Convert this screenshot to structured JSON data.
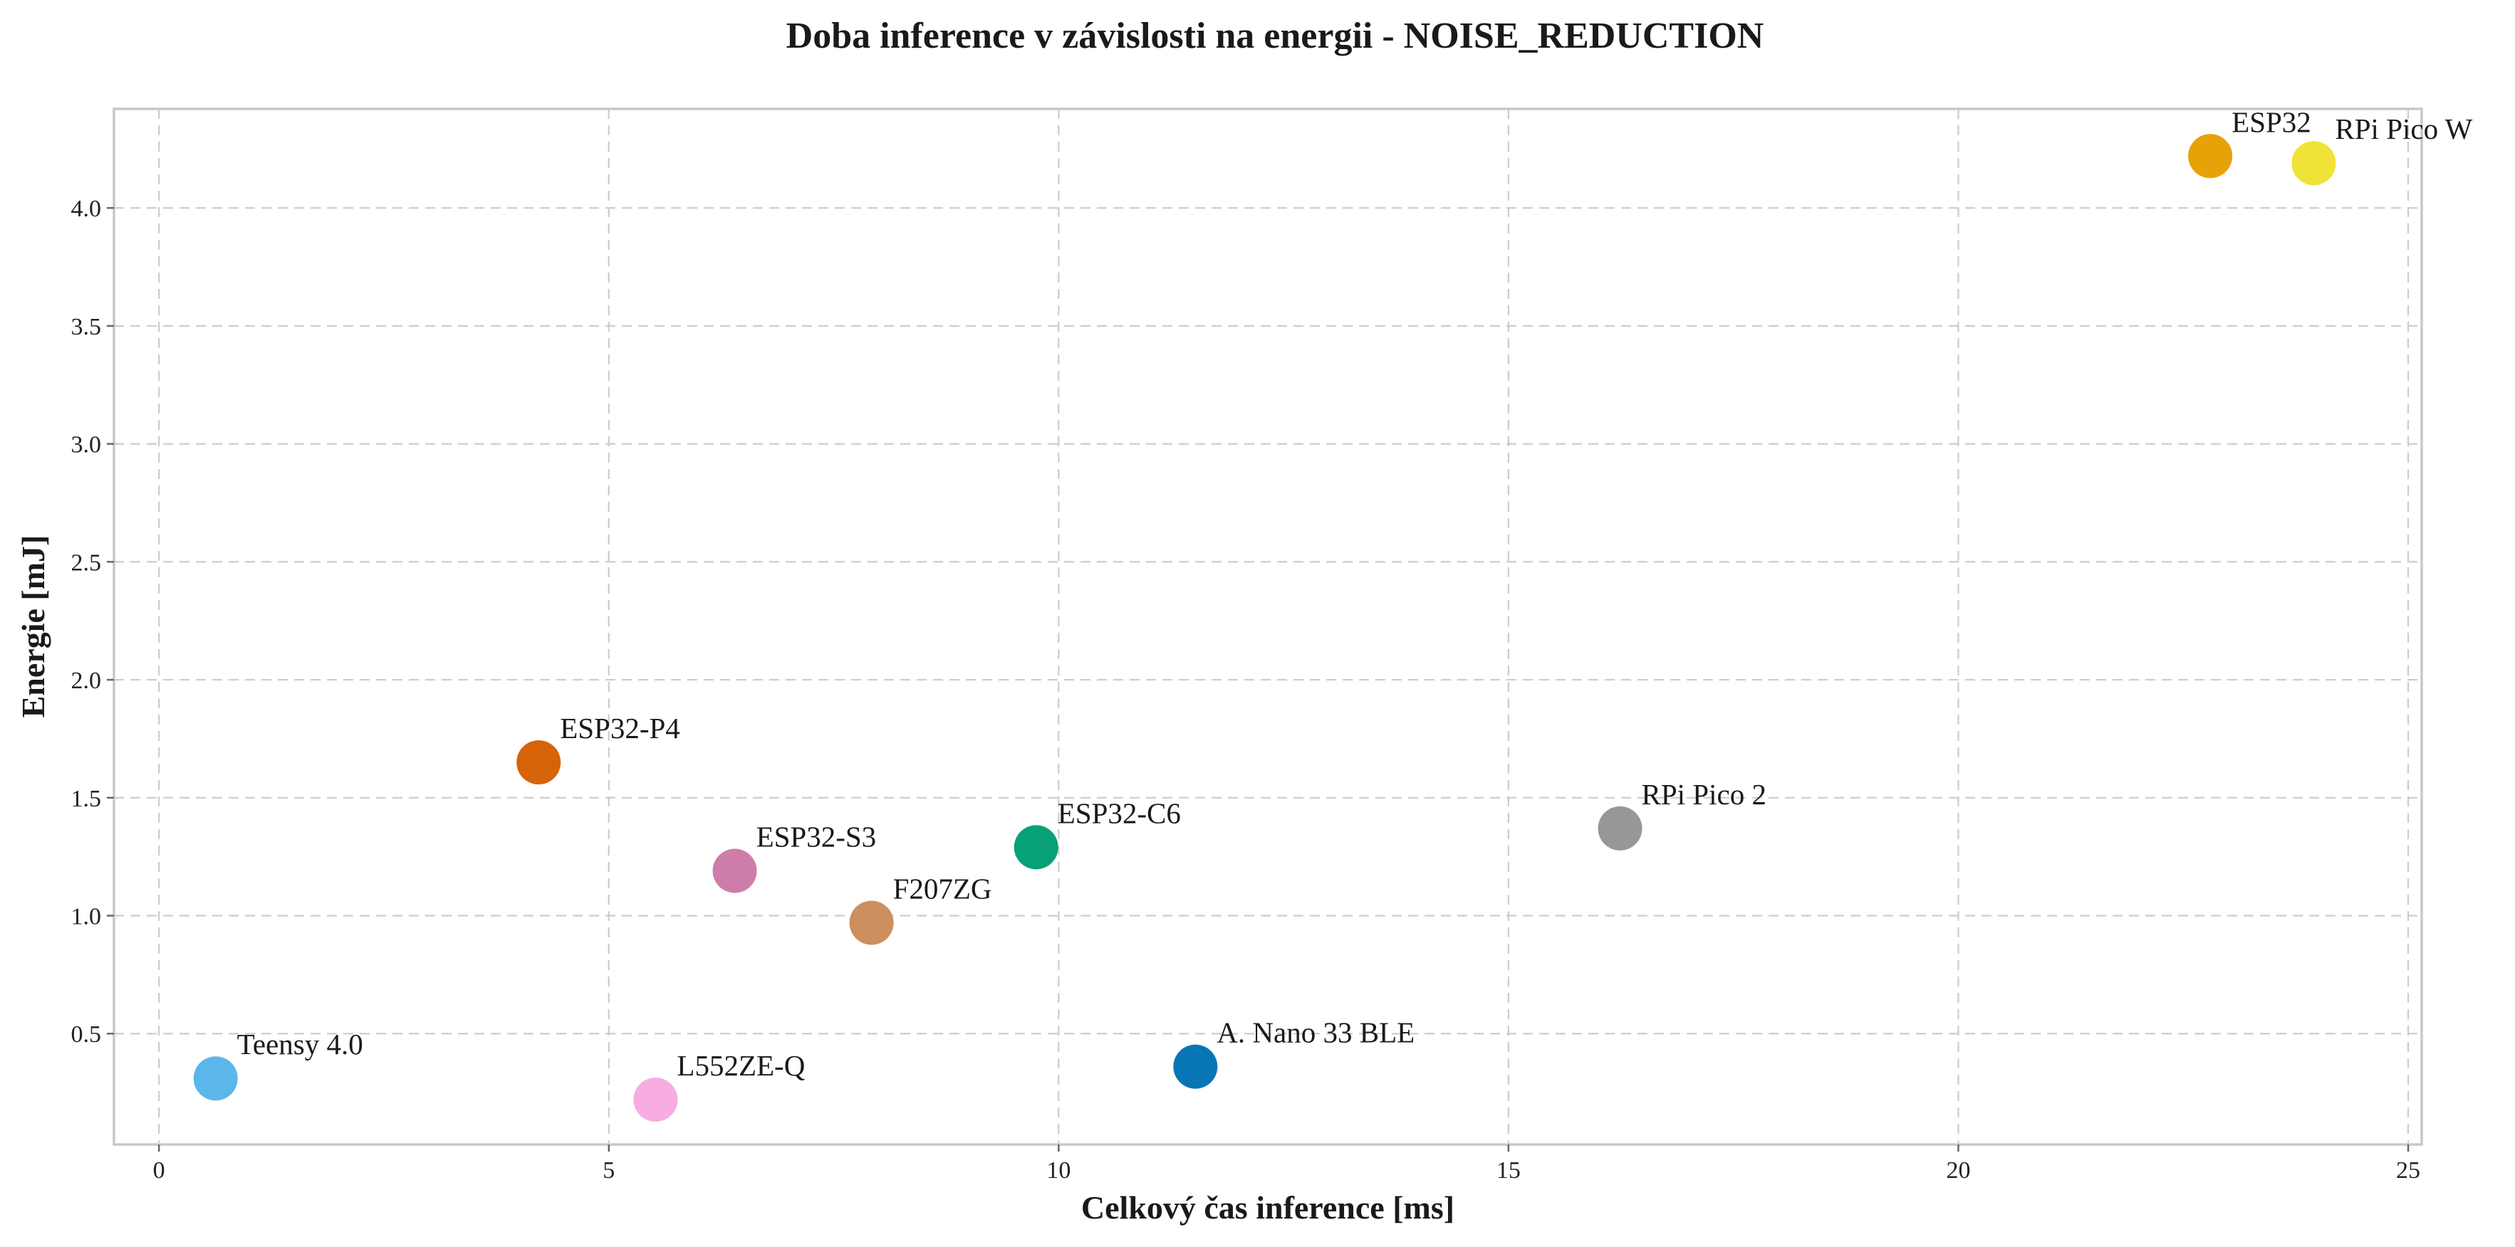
{
  "chart_data": {
    "type": "scatter",
    "title": "Doba inference v závislosti na energii - NOISE_REDUCTION",
    "xlabel": "Celkový čas inference [ms]",
    "ylabel": "Energie [mJ]",
    "xlim": [
      -0.5,
      25.15
    ],
    "ylim": [
      0.03,
      4.42
    ],
    "xticks": [
      0,
      5,
      10,
      15,
      20,
      25
    ],
    "xtick_labels": [
      "0",
      "5",
      "10",
      "15",
      "20",
      "25"
    ],
    "yticks": [
      0.5,
      1.0,
      1.5,
      2.0,
      2.5,
      3.0,
      3.5,
      4.0
    ],
    "ytick_labels": [
      "0.5",
      "1.0",
      "1.5",
      "2.0",
      "2.5",
      "3.0",
      "3.5",
      "4.0"
    ],
    "grid": true,
    "points": [
      {
        "label": "Teensy 4.0",
        "x": 0.63,
        "y": 0.31,
        "color": "#56b4e9"
      },
      {
        "label": "ESP32-P4",
        "x": 4.22,
        "y": 1.65,
        "color": "#d55e00"
      },
      {
        "label": "L552ZE-Q",
        "x": 5.52,
        "y": 0.22,
        "color": "#f9a9e0"
      },
      {
        "label": "ESP32-S3",
        "x": 6.4,
        "y": 1.19,
        "color": "#cc79a7"
      },
      {
        "label": "F207ZG",
        "x": 7.92,
        "y": 0.97,
        "color": "#ca8b5a"
      },
      {
        "label": "ESP32-C6",
        "x": 9.75,
        "y": 1.29,
        "color": "#009e73"
      },
      {
        "label": "A. Nano 33 BLE",
        "x": 11.52,
        "y": 0.36,
        "color": "#0072b2"
      },
      {
        "label": "RPi Pico 2",
        "x": 16.24,
        "y": 1.37,
        "color": "#949494"
      },
      {
        "label": "ESP32",
        "x": 22.8,
        "y": 4.22,
        "color": "#e69f00"
      },
      {
        "label": "RPi Pico W",
        "x": 23.95,
        "y": 4.19,
        "color": "#f0e130"
      }
    ]
  }
}
